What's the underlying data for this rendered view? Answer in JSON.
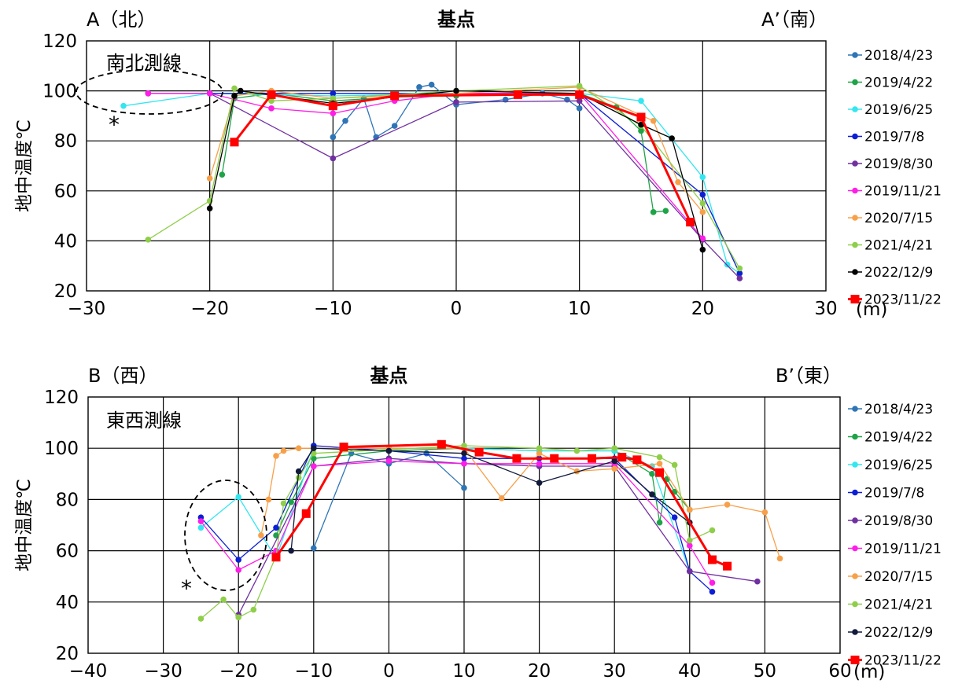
{
  "chart_data": [
    {
      "type": "line",
      "title": "",
      "line_name": "南北測線",
      "left_label": "A（北）",
      "right_label": "A’（南）",
      "center_label": "基点",
      "xlabel": "(m)",
      "ylabel": "地中温度℃",
      "xlim": [
        -30,
        30
      ],
      "ylim": [
        20,
        120
      ],
      "xticks": [
        -30,
        -20,
        -10,
        0,
        10,
        20,
        30
      ],
      "yticks": [
        20,
        40,
        60,
        80,
        100,
        120
      ],
      "asterisk": "*",
      "series": [
        {
          "name": "2018/4/23",
          "color": "#2e75b6",
          "x": [
            -10,
            -9,
            -7.5,
            -6.5,
            -5,
            -3,
            -2,
            0,
            4,
            7,
            9,
            10
          ],
          "y": [
            81.5,
            88,
            97,
            81.5,
            86,
            101.5,
            102.5,
            94.5,
            96.5,
            99,
            96.5,
            93
          ]
        },
        {
          "name": "2019/4/22",
          "color": "#1fa348",
          "x": [
            -19,
            -18,
            -15,
            -10,
            -5,
            0,
            10,
            13,
            15,
            16,
            17
          ],
          "y": [
            66.5,
            97,
            99,
            96,
            97.5,
            98,
            99,
            93.5,
            84,
            51.5,
            52
          ]
        },
        {
          "name": "2019/6/25",
          "color": "#33e6f0",
          "x": [
            -27,
            -20,
            -10,
            0,
            10,
            15,
            20,
            22,
            23
          ],
          "y": [
            94,
            99,
            98,
            99,
            99,
            96,
            65.5,
            30.5,
            27
          ]
        },
        {
          "name": "2019/7/8",
          "color": "#0d1fd4",
          "x": [
            -25,
            -20,
            -10,
            0,
            10,
            20,
            23
          ],
          "y": [
            99,
            99,
            99,
            99,
            99,
            58.5,
            27
          ]
        },
        {
          "name": "2019/8/30",
          "color": "#7030a0",
          "x": [
            -25,
            -20,
            -10,
            0,
            10,
            20,
            23
          ],
          "y": [
            99,
            99,
            73,
            95.5,
            96,
            40.5,
            25
          ]
        },
        {
          "name": "2019/11/21",
          "color": "#ff1ee8",
          "x": [
            -25,
            -20,
            -15,
            -10,
            -5,
            0,
            10,
            20
          ],
          "y": [
            99,
            99,
            93,
            91,
            96,
            99,
            99,
            41
          ]
        },
        {
          "name": "2020/7/15",
          "color": "#f7a04a",
          "x": [
            -20,
            -18,
            -15,
            -10,
            0,
            10,
            16,
            18,
            20
          ],
          "y": [
            65,
            98,
            100,
            97,
            99,
            101.5,
            88,
            63.5,
            51.5
          ]
        },
        {
          "name": "2021/4/21",
          "color": "#8fce4a",
          "x": [
            -25,
            -20,
            -18,
            -15,
            -10,
            0,
            10,
            15,
            20,
            23
          ],
          "y": [
            40.5,
            56,
            101,
            96,
            97,
            100,
            102,
            86,
            55,
            29
          ]
        },
        {
          "name": "2022/12/9",
          "color": "#000000",
          "x": [
            -20,
            -18,
            -17.5,
            -10,
            0,
            10,
            15,
            17.5,
            20
          ],
          "y": [
            53,
            98,
            100,
            95,
            100,
            99,
            86.5,
            81,
            36.5
          ]
        },
        {
          "name": "2023/11/22",
          "color": "#ff0000",
          "x": [
            -18,
            -15,
            -10,
            -5,
            5,
            10,
            15,
            19
          ],
          "y": [
            79.5,
            98.5,
            94,
            98,
            98.5,
            98.5,
            89.5,
            47.5
          ]
        }
      ]
    },
    {
      "type": "line",
      "title": "",
      "line_name": "東西測線",
      "left_label": "B（西）",
      "right_label": "B’（東）",
      "center_label": "基点",
      "xlabel": "(m)",
      "ylabel": "地中温度℃",
      "xlim": [
        -40,
        60
      ],
      "ylim": [
        20,
        120
      ],
      "xticks": [
        -40,
        -30,
        -20,
        -10,
        0,
        10,
        20,
        30,
        40,
        50,
        60
      ],
      "yticks": [
        20,
        40,
        60,
        80,
        100,
        120
      ],
      "asterisk": "*",
      "series": [
        {
          "name": "2018/4/23",
          "color": "#2e75b6",
          "x": [
            -10,
            -5,
            0,
            5,
            10
          ],
          "y": [
            61,
            98,
            94,
            98,
            84.5
          ]
        },
        {
          "name": "2019/4/22",
          "color": "#1fa348",
          "x": [
            -15,
            -13,
            -10,
            0,
            10,
            20,
            30,
            35,
            36,
            37,
            38,
            40
          ],
          "y": [
            66,
            79,
            96,
            99,
            100,
            99,
            99,
            90,
            71,
            88,
            83,
            76
          ]
        },
        {
          "name": "2019/6/25",
          "color": "#33e6f0",
          "x": [
            -25,
            -20,
            -15,
            -10,
            0,
            10,
            20,
            30,
            35,
            40
          ],
          "y": [
            69,
            81,
            57,
            100,
            100,
            100,
            99,
            99,
            93,
            52
          ]
        },
        {
          "name": "2019/7/8",
          "color": "#0d1fd4",
          "x": [
            -25,
            -20,
            -15,
            -10,
            0,
            10,
            20,
            30,
            38,
            40,
            43
          ],
          "y": [
            73,
            56.5,
            69,
            101,
            99,
            96,
            96,
            96,
            73,
            52,
            44
          ]
        },
        {
          "name": "2019/8/30",
          "color": "#7030a0",
          "x": [
            -20,
            -10,
            0,
            10,
            20,
            30,
            40,
            49
          ],
          "y": [
            35,
            93,
            96,
            94,
            93,
            93,
            52,
            48
          ]
        },
        {
          "name": "2019/11/21",
          "color": "#ff1ee8",
          "x": [
            -25,
            -20,
            -15,
            -10,
            0,
            10,
            20,
            30,
            40,
            43
          ],
          "y": [
            71.5,
            52.5,
            60,
            93,
            95,
            94,
            94,
            94,
            62,
            47.5
          ]
        },
        {
          "name": "2020/7/15",
          "color": "#f7a04a",
          "x": [
            -17,
            -16,
            -15,
            -14,
            -12,
            0,
            10,
            15,
            20,
            25,
            30,
            36,
            40,
            45,
            50,
            52
          ],
          "y": [
            66,
            80,
            97,
            99,
            100,
            100,
            100,
            80.5,
            98,
            91,
            92,
            94,
            76,
            78,
            75,
            57
          ]
        },
        {
          "name": "2021/4/21",
          "color": "#8fce4a",
          "x": [
            -25,
            -22,
            -20,
            -18,
            -15,
            -14,
            -12,
            -10,
            10,
            20,
            25,
            30,
            36,
            38,
            40,
            43
          ],
          "y": [
            33.5,
            41,
            34,
            37,
            58,
            78.5,
            88.5,
            98,
            101,
            100,
            99,
            100,
            96.5,
            93.5,
            64,
            68
          ]
        },
        {
          "name": "2022/12/9",
          "color": "#111a3a",
          "x": [
            -13,
            -12,
            -10,
            0,
            10,
            20,
            30,
            35,
            40
          ],
          "y": [
            60,
            91,
            100,
            99,
            98,
            86.5,
            95,
            82,
            71
          ]
        },
        {
          "name": "2023/11/22",
          "color": "#ff0000",
          "x": [
            -15,
            -11,
            -6,
            7,
            12,
            17,
            22,
            27,
            31,
            33,
            36,
            43,
            45
          ],
          "y": [
            57.5,
            74.5,
            100.5,
            101.5,
            98.5,
            96,
            96,
            96,
            96.5,
            95.5,
            90.5,
            56.5,
            54
          ]
        }
      ]
    }
  ]
}
